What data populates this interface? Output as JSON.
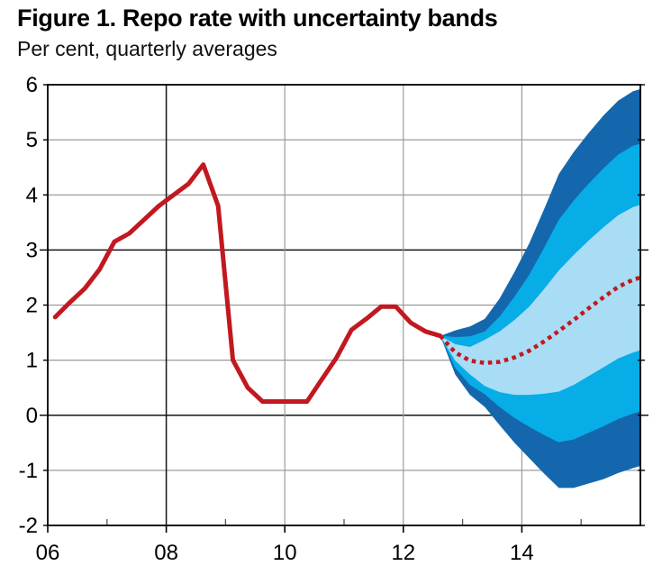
{
  "figure": {
    "title": "Figure 1. Repo rate with uncertainty bands",
    "subtitle": "Per cent, quarterly averages"
  },
  "colors": {
    "line_red": "#c2181f",
    "band_outer_dark_blue": "#1467ad",
    "band_middle_blue": "#07ade6",
    "band_inner_light_blue": "#a8ddf5",
    "grid": "#9b9b9b",
    "grid_dark": "#141414",
    "axis": "#000000",
    "background": "#ffffff"
  },
  "chart_data": {
    "type": "line",
    "title": "Figure 1. Repo rate with uncertainty bands",
    "subtitle": "Per cent, quarterly averages",
    "xlabel": "",
    "ylabel": "Per cent",
    "grid": true,
    "legend": "none",
    "x_axis": {
      "min": 2006,
      "max": 2016,
      "major_ticks": [
        {
          "year": 2006,
          "label": "06"
        },
        {
          "year": 2008,
          "label": "08"
        },
        {
          "year": 2010,
          "label": "10"
        },
        {
          "year": 2012,
          "label": "12"
        },
        {
          "year": 2014,
          "label": "14"
        }
      ],
      "minor_tick_years": [
        2007,
        2009,
        2011,
        2013,
        2015
      ],
      "gridline_years": [
        2008,
        2010,
        2012,
        2014
      ],
      "dark_gridline_years": [
        2008
      ]
    },
    "y_axis": {
      "min": -2,
      "max": 6,
      "ticks": [
        6,
        5,
        4,
        3,
        2,
        1,
        0,
        -1,
        -2
      ],
      "dark_gridline_values": [
        3,
        0
      ]
    },
    "series": [
      {
        "name": "repo-rate-history",
        "style": "solid",
        "x": [
          2006.125,
          2006.375,
          2006.625,
          2006.875,
          2007.125,
          2007.375,
          2007.625,
          2007.875,
          2008.125,
          2008.375,
          2008.625,
          2008.875,
          2009.125,
          2009.375,
          2009.625,
          2009.875,
          2010.125,
          2010.375,
          2010.625,
          2010.875,
          2011.125,
          2011.375,
          2011.625,
          2011.875,
          2012.125,
          2012.375,
          2012.625
        ],
        "y": [
          1.78,
          2.05,
          2.3,
          2.65,
          3.15,
          3.3,
          3.55,
          3.8,
          4.0,
          4.2,
          4.55,
          3.8,
          1.0,
          0.5,
          0.25,
          0.25,
          0.25,
          0.25,
          0.65,
          1.05,
          1.55,
          1.75,
          1.97,
          1.97,
          1.68,
          1.52,
          1.44
        ]
      },
      {
        "name": "repo-rate-forecast",
        "style": "dotted",
        "x": [
          2012.625,
          2012.875,
          2013.125,
          2013.375,
          2013.625,
          2013.875,
          2014.125,
          2014.375,
          2014.625,
          2014.875,
          2015.125,
          2015.375,
          2015.625,
          2015.875,
          2016.0
        ],
        "y": [
          1.44,
          1.14,
          0.99,
          0.95,
          0.97,
          1.05,
          1.17,
          1.34,
          1.53,
          1.73,
          1.94,
          2.14,
          2.33,
          2.46,
          2.5
        ]
      }
    ],
    "bands": [
      {
        "name": "uncertainty-band-outer",
        "x": [
          2012.625,
          2012.875,
          2013.125,
          2013.375,
          2013.625,
          2013.875,
          2014.125,
          2014.375,
          2014.625,
          2014.875,
          2015.125,
          2015.375,
          2015.625,
          2015.875,
          2016.0
        ],
        "upper": [
          1.44,
          1.54,
          1.61,
          1.75,
          2.12,
          2.6,
          3.12,
          3.74,
          4.38,
          4.78,
          5.12,
          5.44,
          5.71,
          5.88,
          5.92
        ],
        "lower": [
          1.44,
          0.74,
          0.37,
          0.15,
          -0.18,
          -0.5,
          -0.78,
          -1.06,
          -1.32,
          -1.32,
          -1.24,
          -1.16,
          -1.05,
          -0.96,
          -0.92
        ]
      },
      {
        "name": "uncertainty-band-middle",
        "x": [
          2012.625,
          2012.875,
          2013.125,
          2013.375,
          2013.625,
          2013.875,
          2014.125,
          2014.375,
          2014.625,
          2014.875,
          2015.125,
          2015.375,
          2015.625,
          2015.875,
          2016.0
        ],
        "upper": [
          1.44,
          1.42,
          1.43,
          1.52,
          1.79,
          2.15,
          2.55,
          3.04,
          3.55,
          3.9,
          4.2,
          4.48,
          4.73,
          4.89,
          4.93
        ],
        "lower": [
          1.44,
          0.86,
          0.55,
          0.38,
          0.15,
          -0.05,
          -0.21,
          -0.36,
          -0.49,
          -0.44,
          -0.32,
          -0.2,
          -0.07,
          0.03,
          0.07
        ]
      },
      {
        "name": "uncertainty-band-inner",
        "x": [
          2012.625,
          2012.875,
          2013.125,
          2013.375,
          2013.625,
          2013.875,
          2014.125,
          2014.375,
          2014.625,
          2014.875,
          2015.125,
          2015.375,
          2015.625,
          2015.875,
          2016.0
        ],
        "upper": [
          1.44,
          1.29,
          1.24,
          1.37,
          1.52,
          1.73,
          1.97,
          2.29,
          2.63,
          2.91,
          3.17,
          3.41,
          3.63,
          3.78,
          3.82
        ],
        "lower": [
          1.44,
          0.99,
          0.74,
          0.53,
          0.42,
          0.37,
          0.37,
          0.39,
          0.43,
          0.55,
          0.71,
          0.87,
          1.03,
          1.14,
          1.18
        ]
      }
    ]
  }
}
